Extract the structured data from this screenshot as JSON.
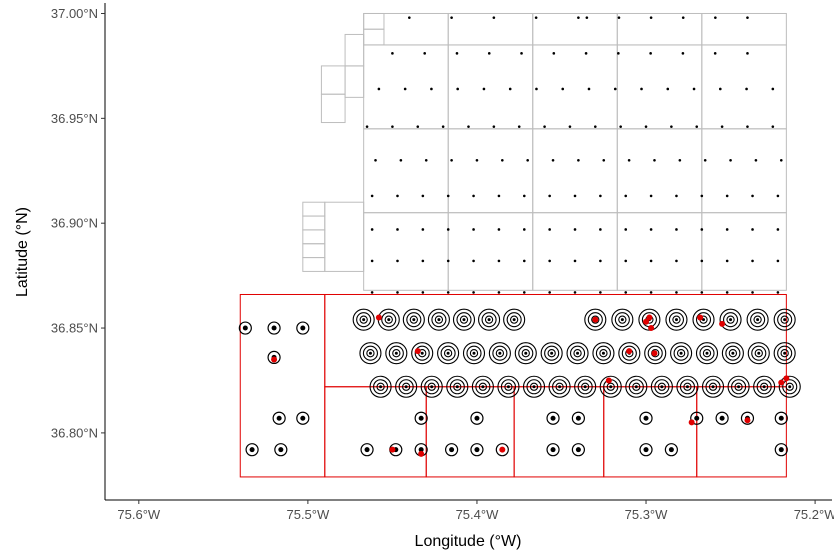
{
  "chart_data": {
    "type": "scatter",
    "title": "",
    "xlabel": "Longitude (°W)",
    "ylabel": "Latitude (°N)",
    "xlim": [
      -75.62,
      -75.19
    ],
    "ylim": [
      36.768,
      37.005
    ],
    "grid": false,
    "x_ticks": [
      {
        "value": -75.6,
        "label": "75.6°W"
      },
      {
        "value": -75.5,
        "label": "75.5°W"
      },
      {
        "value": -75.4,
        "label": "75.4°W"
      },
      {
        "value": -75.3,
        "label": "75.3°W"
      },
      {
        "value": -75.2,
        "label": "75.2°W"
      }
    ],
    "y_ticks": [
      {
        "value": 36.8,
        "label": "36.80°N"
      },
      {
        "value": 36.85,
        "label": "36.85°N"
      },
      {
        "value": 36.9,
        "label": "36.90°N"
      },
      {
        "value": 36.95,
        "label": "36.95°N"
      },
      {
        "value": 37.0,
        "label": "37.00°N"
      }
    ],
    "colors": {
      "grid_cell_outline": "#bdbdbd",
      "survey_block_outline": "#e00000",
      "station_point": "#000000",
      "detection_point": "#e00000",
      "ring": "#000000"
    },
    "grid_cells": {
      "lon_edges": [
        -75.467,
        -75.417,
        -75.367,
        -75.317,
        -75.267,
        -75.217
      ],
      "lat_edges": [
        36.868,
        36.905,
        36.945,
        36.985,
        37.0
      ],
      "western_strip_lon": [
        -75.503,
        -75.49
      ],
      "western_strip_lat": [
        36.877,
        36.91
      ],
      "northwest_steps": [
        {
          "lon": [
            -75.492,
            -75.478
          ],
          "lat": [
            36.948,
            36.975
          ]
        },
        {
          "lon": [
            -75.478,
            -75.467
          ],
          "lat": [
            36.96,
            36.99
          ]
        },
        {
          "lon": [
            -75.467,
            -75.455
          ],
          "lat": [
            36.985,
            37.0
          ]
        }
      ]
    },
    "survey_blocks": [
      {
        "lon": [
          -75.54,
          -75.49
        ],
        "lat": [
          36.779,
          36.866
        ]
      },
      {
        "lon": [
          -75.49,
          -75.43
        ],
        "lat": [
          36.779,
          36.822
        ]
      },
      {
        "lon": [
          -75.43,
          -75.378
        ],
        "lat": [
          36.779,
          36.822
        ]
      },
      {
        "lon": [
          -75.378,
          -75.325
        ],
        "lat": [
          36.779,
          36.822
        ]
      },
      {
        "lon": [
          -75.325,
          -75.27
        ],
        "lat": [
          36.779,
          36.822
        ]
      },
      {
        "lon": [
          -75.27,
          -75.217
        ],
        "lat": [
          36.779,
          36.822
        ]
      }
    ],
    "survey_hline_lat": 36.822,
    "grid_stations": {
      "rows": [
        {
          "lat": 36.998,
          "lon_start": -75.44,
          "lon_end": -75.34,
          "n": 5
        },
        {
          "lat": 36.998,
          "lon_start": -75.335,
          "lon_end": -75.24,
          "n": 6
        },
        {
          "lat": 36.981,
          "lon_start": -75.45,
          "lon_end": -75.24,
          "n": 12
        },
        {
          "lat": 36.964,
          "lon_start": -75.458,
          "lon_end": -75.225,
          "n": 16
        },
        {
          "lat": 36.946,
          "lon_start": -75.465,
          "lon_end": -75.225,
          "n": 17
        },
        {
          "lat": 36.93,
          "lon_start": -75.46,
          "lon_end": -75.22,
          "n": 17
        },
        {
          "lat": 36.913,
          "lon_start": -75.462,
          "lon_end": -75.222,
          "n": 17
        },
        {
          "lat": 36.897,
          "lon_start": -75.462,
          "lon_end": -75.222,
          "n": 17
        },
        {
          "lat": 36.882,
          "lon_start": -75.462,
          "lon_end": -75.222,
          "n": 17
        },
        {
          "lat": 36.867,
          "lon_start": -75.462,
          "lon_end": -75.222,
          "n": 17
        }
      ]
    },
    "ring_stations": {
      "rows": [
        {
          "lat": 36.854,
          "lon_start": -75.467,
          "lon_end": -75.378,
          "n": 7
        },
        {
          "lat": 36.854,
          "lon_start": -75.33,
          "lon_end": -75.218,
          "n": 8
        },
        {
          "lat": 36.838,
          "lon_start": -75.463,
          "lon_end": -75.218,
          "n": 17
        },
        {
          "lat": 36.822,
          "lon_start": -75.457,
          "lon_end": -75.215,
          "n": 17
        }
      ]
    },
    "block_stations": {
      "points": [
        [
          -75.537,
          36.85
        ],
        [
          -75.52,
          36.85
        ],
        [
          -75.503,
          36.85
        ],
        [
          -75.52,
          36.836
        ],
        [
          -75.517,
          36.807
        ],
        [
          -75.503,
          36.807
        ],
        [
          -75.533,
          36.792
        ],
        [
          -75.516,
          36.792
        ],
        [
          -75.433,
          36.807
        ],
        [
          -75.4,
          36.807
        ],
        [
          -75.355,
          36.807
        ],
        [
          -75.34,
          36.807
        ],
        [
          -75.3,
          36.807
        ],
        [
          -75.27,
          36.807
        ],
        [
          -75.255,
          36.807
        ],
        [
          -75.24,
          36.807
        ],
        [
          -75.22,
          36.807
        ],
        [
          -75.465,
          36.792
        ],
        [
          -75.448,
          36.792
        ],
        [
          -75.433,
          36.792
        ],
        [
          -75.415,
          36.792
        ],
        [
          -75.4,
          36.792
        ],
        [
          -75.385,
          36.792
        ],
        [
          -75.355,
          36.792
        ],
        [
          -75.34,
          36.792
        ],
        [
          -75.3,
          36.792
        ],
        [
          -75.285,
          36.792
        ],
        [
          -75.22,
          36.792
        ]
      ]
    },
    "detections": [
      [
        -75.458,
        36.855
      ],
      [
        -75.435,
        36.839
      ],
      [
        -75.52,
        36.835
      ],
      [
        -75.45,
        36.792
      ],
      [
        -75.433,
        36.79
      ],
      [
        -75.385,
        36.792
      ],
      [
        -75.33,
        36.854
      ],
      [
        -75.31,
        36.839
      ],
      [
        -75.322,
        36.825
      ],
      [
        -75.298,
        36.855
      ],
      [
        -75.3,
        36.853
      ],
      [
        -75.297,
        36.85
      ],
      [
        -75.295,
        36.838
      ],
      [
        -75.268,
        36.855
      ],
      [
        -75.255,
        36.852
      ],
      [
        -75.273,
        36.805
      ],
      [
        -75.24,
        36.806
      ],
      [
        -75.217,
        36.826
      ],
      [
        -75.22,
        36.824
      ]
    ]
  }
}
